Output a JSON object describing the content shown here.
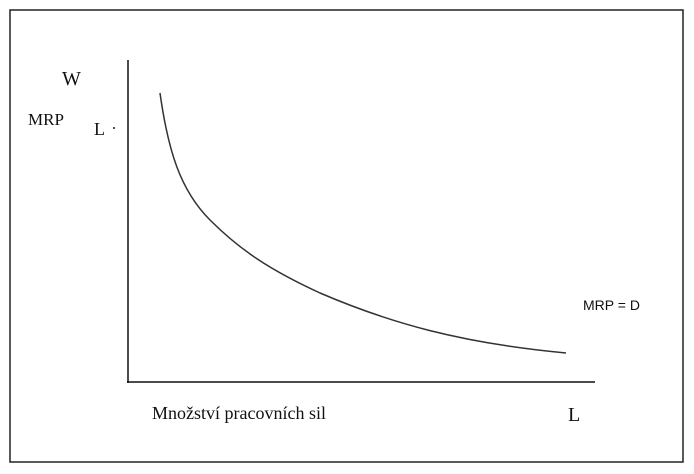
{
  "y_axis_label": "W",
  "curve_axis_label": {
    "main": "MRP",
    "subscript": "L"
  },
  "curve_label": "MRP = D",
  "x_axis_label": "L",
  "x_axis_caption": "Množství pracovních sil"
}
